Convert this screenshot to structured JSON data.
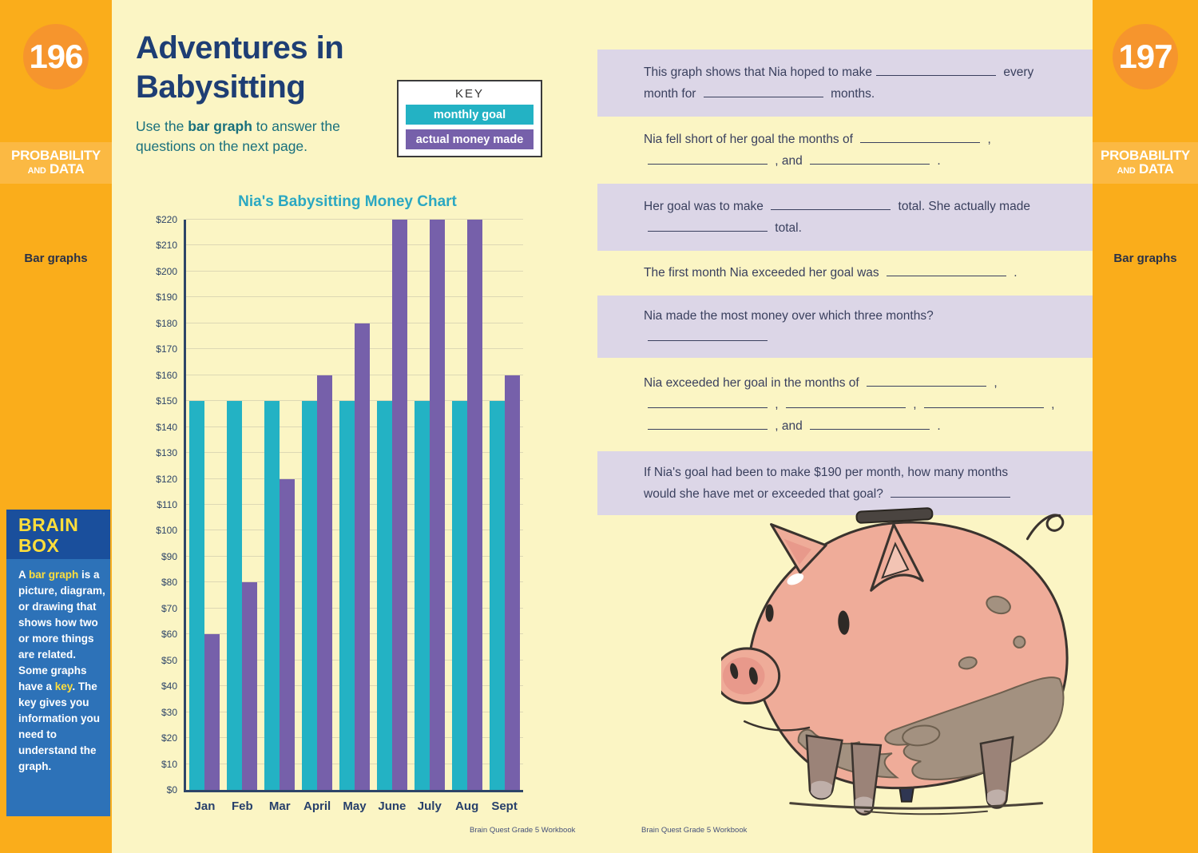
{
  "left_sidebar": {
    "page_number": "196",
    "section_line1": "PROBABILITY",
    "section_and": "AND",
    "section_line2": "DATA",
    "topic": "Bar graphs",
    "brain_box": {
      "title": "BRAIN BOX",
      "body_segments": [
        {
          "t": "A "
        },
        {
          "t": "bar graph",
          "y": true
        },
        {
          "t": " is a picture, diagram, or drawing that shows how two or more things are related. Some graphs have a "
        },
        {
          "t": "key",
          "y": true
        },
        {
          "t": ". The key gives you information you need to understand the graph."
        }
      ]
    }
  },
  "right_sidebar": {
    "page_number": "197",
    "section_line1": "PROBABILITY",
    "section_and": "AND",
    "section_line2": "DATA",
    "topic": "Bar graphs"
  },
  "left_page": {
    "title_line1": "Adventures in",
    "title_line2": "Babysitting",
    "instructions_segments": [
      {
        "t": "Use the "
      },
      {
        "t": "bar graph",
        "b": true
      },
      {
        "t": " to answer the questions on the next page."
      }
    ],
    "key": {
      "title": "KEY",
      "items": [
        {
          "label": "monthly goal",
          "color": "#23B2C4"
        },
        {
          "label": "actual money made",
          "color": "#7660AA"
        }
      ]
    },
    "footer": "Brain Quest Grade 5 Workbook"
  },
  "right_page": {
    "illustration": "muddy piggy bank with coin slot",
    "footer": "Brain Quest Grade 5 Workbook",
    "questions": [
      {
        "shaded": true,
        "tokens": [
          {
            "t": "This graph shows that Nia hoped to make"
          },
          {
            "blank": true
          },
          {
            "t": " every"
          },
          {
            "nl": true
          },
          {
            "t": "month for "
          },
          {
            "blank": true
          },
          {
            "t": " months."
          }
        ]
      },
      {
        "shaded": false,
        "tokens": [
          {
            "t": "Nia fell short of her goal the months of "
          },
          {
            "blank": true
          },
          {
            "t": " ,"
          },
          {
            "nl": true
          },
          {
            "blank": true
          },
          {
            "t": " , and "
          },
          {
            "blank": true
          },
          {
            "t": " ."
          }
        ]
      },
      {
        "shaded": true,
        "tokens": [
          {
            "t": "Her goal was to make "
          },
          {
            "blank": true
          },
          {
            "t": " total. She actually made"
          },
          {
            "nl": true
          },
          {
            "blank": true
          },
          {
            "t": " total."
          }
        ]
      },
      {
        "shaded": false,
        "tokens": [
          {
            "t": "The first month Nia exceeded her goal was "
          },
          {
            "blank": true
          },
          {
            "t": " ."
          }
        ]
      },
      {
        "shaded": true,
        "tokens": [
          {
            "t": "Nia made the most money over which three months? "
          },
          {
            "blank": true
          }
        ]
      },
      {
        "shaded": false,
        "tokens": [
          {
            "t": "Nia exceeded her goal in the months of "
          },
          {
            "blank": true
          },
          {
            "t": " ,"
          },
          {
            "nl": true
          },
          {
            "blank": true
          },
          {
            "t": " , "
          },
          {
            "blank": true
          },
          {
            "t": " , "
          },
          {
            "blank": true
          },
          {
            "t": " ,"
          },
          {
            "nl": true
          },
          {
            "blank": true
          },
          {
            "t": " , and "
          },
          {
            "blank": true
          },
          {
            "t": " ."
          }
        ]
      },
      {
        "shaded": true,
        "tokens": [
          {
            "t": "If Nia's goal had been to make $190 per month, how many months"
          },
          {
            "nl": true
          },
          {
            "t": "would she have met or exceeded that goal? "
          },
          {
            "blank": true
          }
        ]
      }
    ]
  },
  "chart_data": {
    "type": "bar",
    "title": "Nia's Babysitting Money Chart",
    "categories": [
      "Jan",
      "Feb",
      "Mar",
      "April",
      "May",
      "June",
      "July",
      "Aug",
      "Sept"
    ],
    "series": [
      {
        "name": "monthly goal",
        "color": "#23B2C4",
        "values": [
          150,
          150,
          150,
          150,
          150,
          150,
          150,
          150,
          150
        ]
      },
      {
        "name": "actual money made",
        "color": "#7660AA",
        "values": [
          60,
          80,
          120,
          160,
          180,
          220,
          220,
          220,
          160
        ]
      }
    ],
    "xlabel": "",
    "ylabel": "",
    "ylim": [
      0,
      220
    ],
    "y_tick_step": 10,
    "y_tick_labels": [
      "$0",
      "$10",
      "$20",
      "$30",
      "$40",
      "$50",
      "$60",
      "$70",
      "$80",
      "$90",
      "$100",
      "$110",
      "$120",
      "$130",
      "$140",
      "$150",
      "$160",
      "$170",
      "$180",
      "$190",
      "$200",
      "$210",
      "$220"
    ],
    "grid": true,
    "legend_position": "key box, top of left page"
  },
  "colors": {
    "sidebar_orange": "#FAAD1B",
    "circle_orange": "#F6952D",
    "strip_orange": "#FBB943",
    "page_cream": "#FBF5C4",
    "title_navy": "#1E3E74",
    "question_lavender": "#DCD6E7",
    "teal": "#23B2C4",
    "purple": "#7660AA",
    "brainbox_header_blue": "#1A4F9C",
    "brainbox_body_blue": "#2D72B8",
    "brainbox_yellow": "#FFDE3B"
  }
}
